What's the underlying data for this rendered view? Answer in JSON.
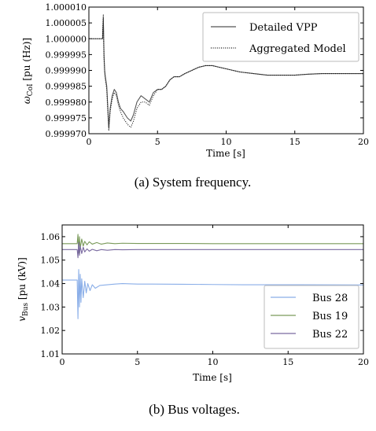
{
  "captions": {
    "a": "(a) System frequency.",
    "b": "(b) Bus voltages."
  },
  "chart_data": [
    {
      "type": "line",
      "xlabel": "Time [s]",
      "ylabel_main": "ω",
      "ylabel_sub": "CoI",
      "ylabel_unit": " [pu (Hz)]",
      "xlim": [
        0,
        20
      ],
      "ylim": [
        0.99997,
        1.00001
      ],
      "xticks": [
        0,
        5,
        10,
        15,
        20
      ],
      "yticks": [
        0.99997,
        0.999975,
        0.99998,
        0.999985,
        0.99999,
        0.999995,
        1.0,
        1.000005,
        1.00001
      ],
      "ytick_labels": [
        "0.999970",
        "0.999975",
        "0.999980",
        "0.999985",
        "0.999990",
        "0.999995",
        "1.000000",
        "1.000005",
        "1.000010"
      ],
      "grid": false,
      "legend_position": "top-right",
      "series": [
        {
          "name": "Detailed VPP",
          "color": "#555555",
          "style": "solid",
          "x": [
            0,
            1.0,
            1.0,
            1.05,
            1.1,
            1.15,
            1.2,
            1.3,
            1.45,
            1.55,
            1.7,
            1.85,
            2.0,
            2.15,
            2.3,
            2.5,
            2.8,
            3.05,
            3.25,
            3.5,
            3.8,
            4.1,
            4.4,
            4.7,
            5.0,
            5.3,
            5.6,
            5.9,
            6.2,
            6.6,
            7.0,
            7.5,
            8.0,
            8.5,
            9.0,
            9.5,
            10.0,
            11.0,
            12.0,
            13.0,
            14.0,
            15.0,
            16.0,
            17.0,
            18.0,
            19.0,
            20.0
          ],
          "y": [
            1.0,
            1.0,
            1.000001,
            1.0000065,
            0.999995,
            0.99999,
            0.999988,
            0.999985,
            0.999972,
            0.999978,
            0.999982,
            0.999984,
            0.999983,
            0.99998,
            0.999978,
            0.999977,
            0.999975,
            0.999974,
            0.999976,
            0.99998,
            0.999982,
            0.999981,
            0.99998,
            0.999983,
            0.999984,
            0.999984,
            0.999985,
            0.999987,
            0.999988,
            0.999988,
            0.999989,
            0.99999,
            0.999991,
            0.9999915,
            0.9999915,
            0.999991,
            0.9999905,
            0.9999895,
            0.999989,
            0.9999885,
            0.9999885,
            0.9999885,
            0.9999888,
            0.999989,
            0.999989,
            0.999989,
            0.999989
          ]
        },
        {
          "name": "Aggregated Model",
          "color": "#111111",
          "style": "dotted",
          "x": [
            0,
            1.0,
            1.0,
            1.05,
            1.1,
            1.15,
            1.2,
            1.3,
            1.45,
            1.55,
            1.7,
            1.85,
            2.0,
            2.15,
            2.3,
            2.5,
            2.8,
            3.05,
            3.25,
            3.5,
            3.8,
            4.1,
            4.4,
            4.7,
            5.0,
            5.3,
            5.6,
            5.9,
            6.2,
            6.6,
            7.0,
            7.5,
            8.0,
            8.5,
            9.0,
            9.5,
            10.0,
            11.0,
            12.0,
            13.0,
            14.0,
            15.0,
            16.0,
            17.0,
            18.0,
            19.0,
            20.0
          ],
          "y": [
            1.0,
            1.0,
            1.000002,
            1.0000075,
            0.999994,
            0.999989,
            0.999987,
            0.999984,
            0.999971,
            0.999977,
            0.999981,
            0.999983,
            0.999982,
            0.999979,
            0.999977,
            0.999975,
            0.999973,
            0.999972,
            0.999974,
            0.999978,
            0.99998,
            0.99998,
            0.999979,
            0.999982,
            0.999984,
            0.999984,
            0.999985,
            0.999987,
            0.999988,
            0.999988,
            0.999989,
            0.99999,
            0.999991,
            0.9999915,
            0.9999915,
            0.999991,
            0.9999905,
            0.9999895,
            0.999989,
            0.9999885,
            0.9999885,
            0.9999885,
            0.9999888,
            0.999989,
            0.999989,
            0.999989,
            0.999989
          ]
        }
      ]
    },
    {
      "type": "line",
      "xlabel": "Time [s]",
      "ylabel_main": "v",
      "ylabel_sub": "Bus",
      "ylabel_unit": " [pu (kV)]",
      "xlim": [
        0,
        20
      ],
      "ylim": [
        1.01,
        1.065
      ],
      "xticks": [
        0,
        5,
        10,
        15,
        20
      ],
      "yticks": [
        1.01,
        1.02,
        1.03,
        1.04,
        1.05,
        1.06
      ],
      "ytick_labels": [
        "1.01",
        "1.02",
        "1.03",
        "1.04",
        "1.05",
        "1.06"
      ],
      "grid": false,
      "legend_position": "bottom-right",
      "series": [
        {
          "name": "Bus 28",
          "color": "#8aaee8",
          "x": [
            0,
            1.0,
            1.05,
            1.1,
            1.15,
            1.2,
            1.25,
            1.3,
            1.4,
            1.5,
            1.6,
            1.7,
            1.85,
            2.0,
            2.2,
            2.5,
            3.0,
            3.5,
            4.0,
            5.0,
            6.0,
            8.0,
            10.0,
            12.0,
            15.0,
            20.0
          ],
          "y": [
            1.0415,
            1.0415,
            1.025,
            1.046,
            1.03,
            1.044,
            1.032,
            1.042,
            1.034,
            1.041,
            1.036,
            1.04,
            1.037,
            1.0395,
            1.038,
            1.0392,
            1.0395,
            1.0398,
            1.04,
            1.0398,
            1.0398,
            1.0397,
            1.0396,
            1.0395,
            1.0395,
            1.0394
          ]
        },
        {
          "name": "Bus 19",
          "color": "#7a9a5a",
          "x": [
            0,
            1.0,
            1.05,
            1.1,
            1.15,
            1.2,
            1.3,
            1.4,
            1.5,
            1.65,
            1.8,
            2.0,
            2.3,
            2.6,
            3.0,
            3.5,
            4.0,
            5.0,
            6.0,
            8.0,
            10.0,
            12.0,
            15.0,
            20.0
          ],
          "y": [
            1.057,
            1.057,
            1.061,
            1.053,
            1.06,
            1.055,
            1.059,
            1.056,
            1.058,
            1.0565,
            1.0578,
            1.0568,
            1.0575,
            1.0568,
            1.0573,
            1.057,
            1.0572,
            1.0571,
            1.0571,
            1.0571,
            1.057,
            1.057,
            1.057,
            1.057
          ]
        },
        {
          "name": "Bus 22",
          "color": "#7a6aa0",
          "x": [
            0,
            1.0,
            1.05,
            1.1,
            1.15,
            1.2,
            1.3,
            1.4,
            1.5,
            1.65,
            1.8,
            2.0,
            2.3,
            2.6,
            3.0,
            3.5,
            4.0,
            5.0,
            6.0,
            8.0,
            10.0,
            12.0,
            15.0,
            20.0
          ],
          "y": [
            1.0545,
            1.0545,
            1.051,
            1.0575,
            1.052,
            1.056,
            1.0528,
            1.0555,
            1.0535,
            1.0548,
            1.0538,
            1.0546,
            1.054,
            1.0545,
            1.0542,
            1.0545,
            1.0544,
            1.0545,
            1.0545,
            1.0545,
            1.0545,
            1.0545,
            1.0545,
            1.0545
          ]
        }
      ]
    }
  ]
}
